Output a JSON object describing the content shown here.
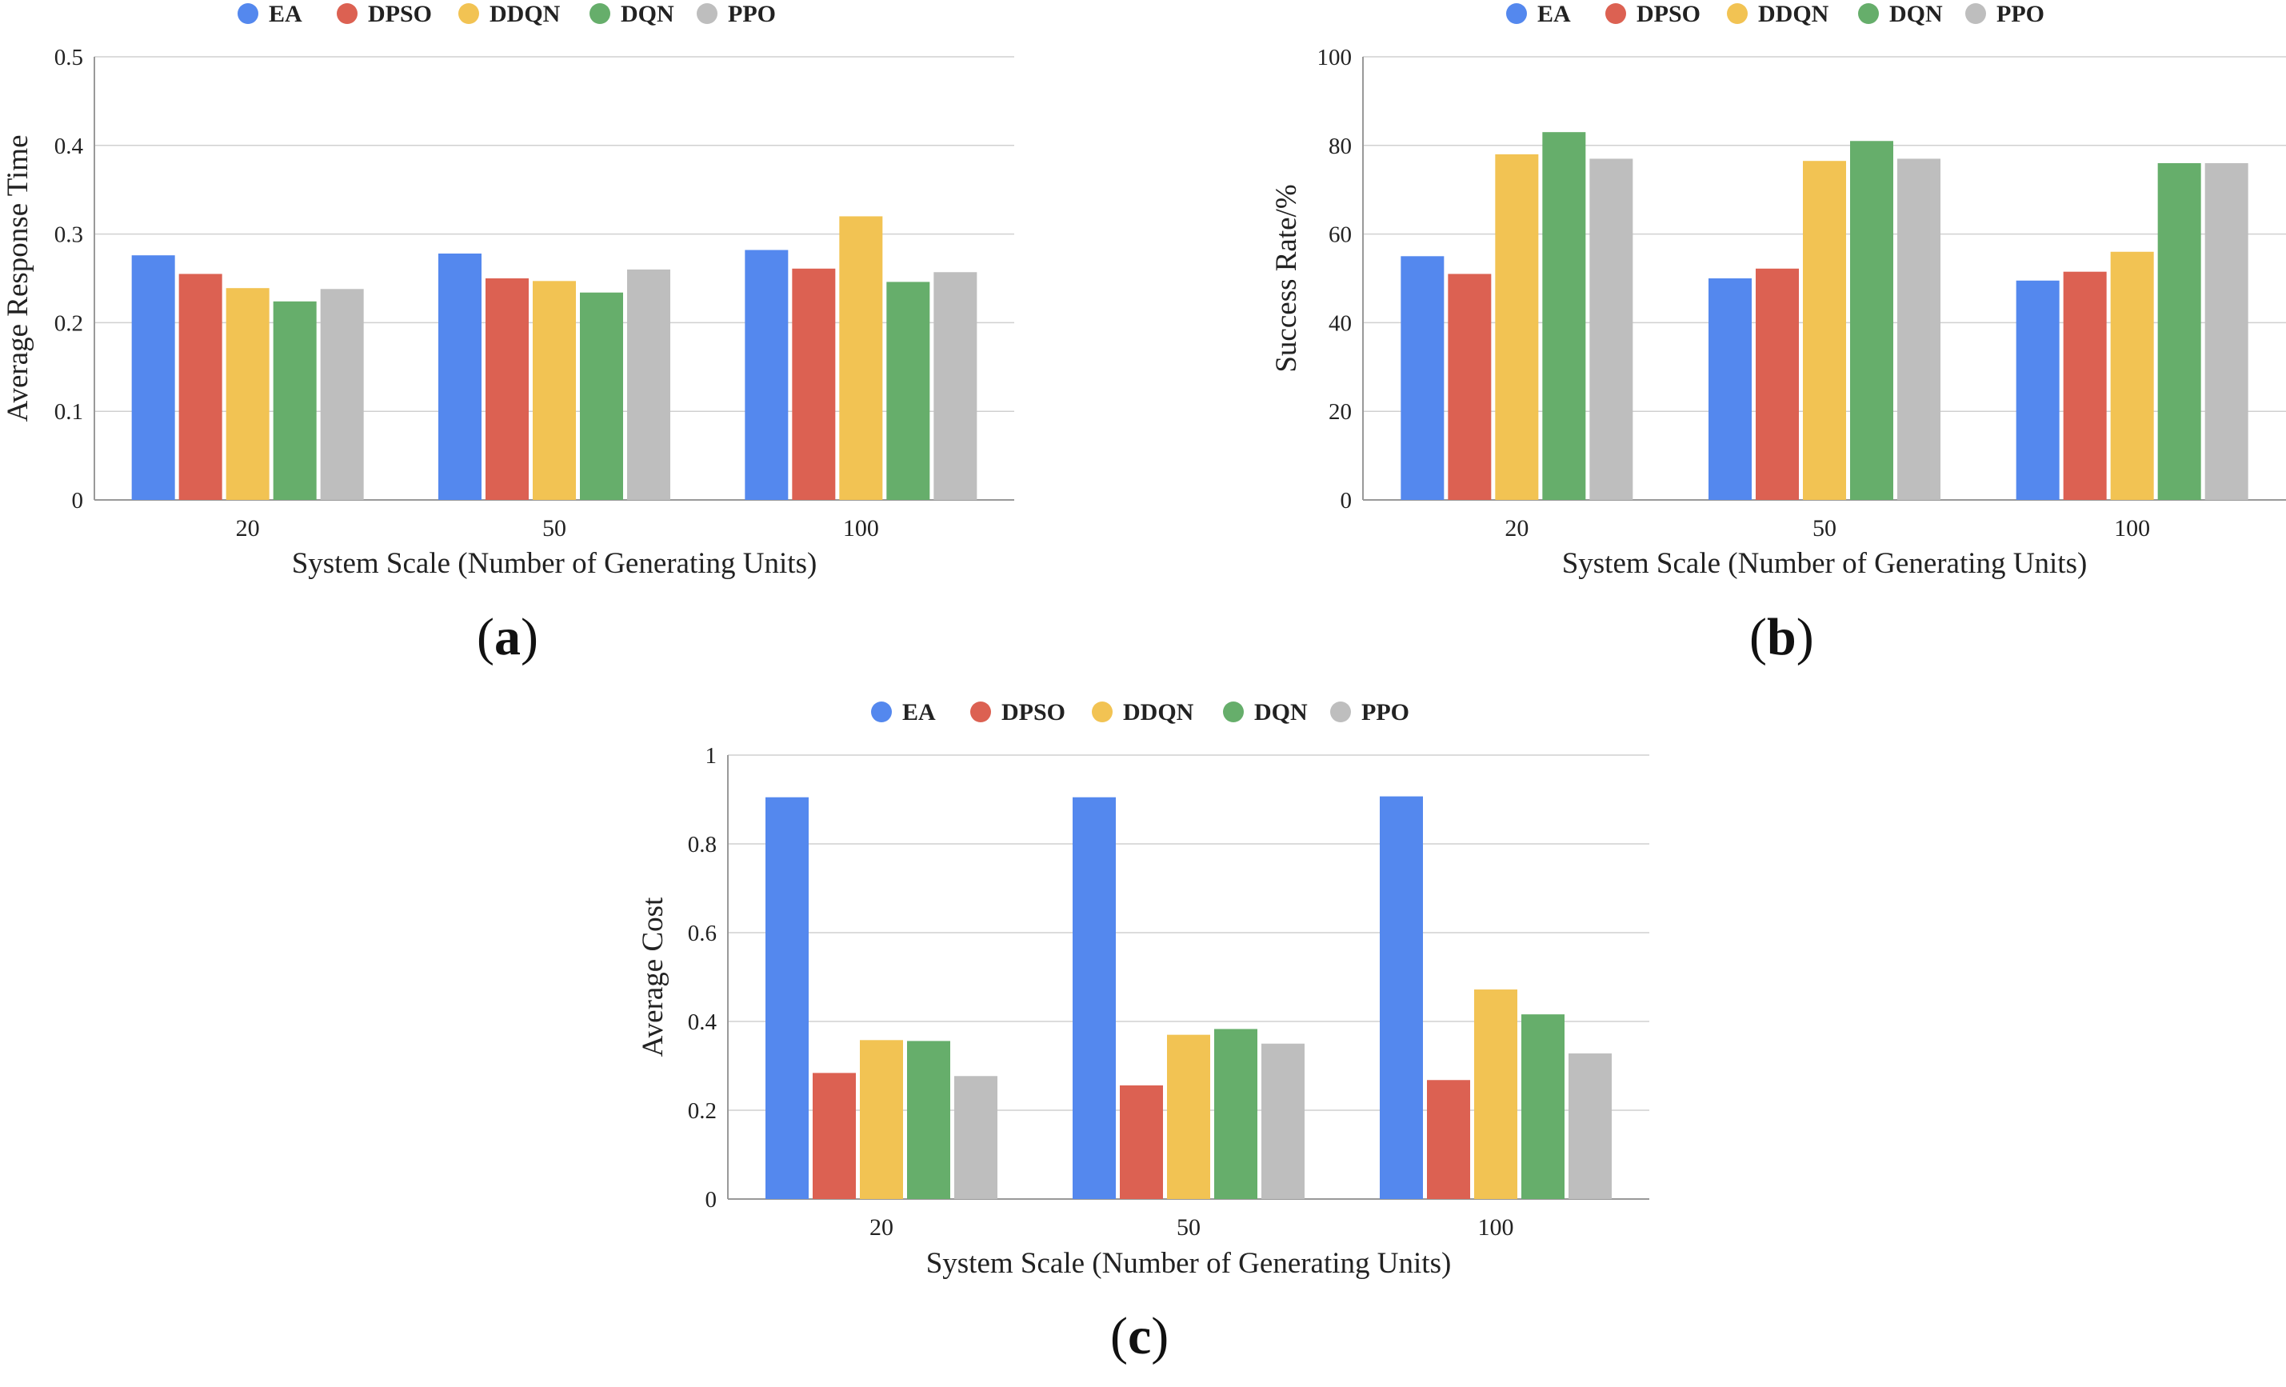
{
  "colors": {
    "EA": "#5488EE",
    "DPSO": "#DC6152",
    "DDQN": "#F2C353",
    "DQN": "#66AE6B",
    "PPO": "#BEBEBE"
  },
  "chart_data": [
    {
      "panel": "(a)",
      "type": "bar",
      "categories": [
        "20",
        "50",
        "100"
      ],
      "series": [
        {
          "name": "EA",
          "values": [
            0.276,
            0.278,
            0.282
          ]
        },
        {
          "name": "DPSO",
          "values": [
            0.255,
            0.25,
            0.261
          ]
        },
        {
          "name": "DDQN",
          "values": [
            0.239,
            0.247,
            0.32
          ]
        },
        {
          "name": "DQN",
          "values": [
            0.224,
            0.234,
            0.246
          ]
        },
        {
          "name": "PPO",
          "values": [
            0.238,
            0.26,
            0.257
          ]
        }
      ],
      "xlabel": "System Scale (Number of Generating Units)",
      "ylabel": "Average Response Time",
      "ylim": [
        0,
        0.5
      ],
      "yticks": [
        "0",
        "0.1",
        "0.2",
        "0.3",
        "0.4",
        "0.5"
      ],
      "legend": [
        "EA",
        "DPSO",
        "DDQN",
        "DQN",
        "PPO"
      ],
      "grid": true
    },
    {
      "panel": "(b)",
      "type": "bar",
      "categories": [
        "20",
        "50",
        "100"
      ],
      "series": [
        {
          "name": "EA",
          "values": [
            55,
            50,
            49.5
          ]
        },
        {
          "name": "DPSO",
          "values": [
            51,
            52.2,
            51.5
          ]
        },
        {
          "name": "DDQN",
          "values": [
            78,
            76.5,
            56
          ]
        },
        {
          "name": "DQN",
          "values": [
            83,
            81,
            76
          ]
        },
        {
          "name": "PPO",
          "values": [
            77,
            77,
            76
          ]
        }
      ],
      "xlabel": "System Scale (Number of Generating Units)",
      "ylabel": "Success Rate/%",
      "ylim": [
        0,
        100
      ],
      "yticks": [
        "0",
        "20",
        "40",
        "60",
        "80",
        "100"
      ],
      "legend": [
        "EA",
        "DPSO",
        "DDQN",
        "DQN",
        "PPO"
      ],
      "grid": true
    },
    {
      "panel": "(c)",
      "type": "bar",
      "categories": [
        "20",
        "50",
        "100"
      ],
      "series": [
        {
          "name": "EA",
          "values": [
            0.905,
            0.905,
            0.907
          ]
        },
        {
          "name": "DPSO",
          "values": [
            0.284,
            0.256,
            0.268
          ]
        },
        {
          "name": "DDQN",
          "values": [
            0.358,
            0.37,
            0.472
          ]
        },
        {
          "name": "DQN",
          "values": [
            0.356,
            0.383,
            0.416
          ]
        },
        {
          "name": "PPO",
          "values": [
            0.277,
            0.35,
            0.328
          ]
        }
      ],
      "xlabel": "System Scale (Number of Generating Units)",
      "ylabel": "Average Cost",
      "ylim": [
        0,
        1
      ],
      "yticks": [
        "0",
        "0.2",
        "0.4",
        "0.6",
        "0.8",
        "1"
      ],
      "legend": [
        "EA",
        "DPSO",
        "DDQN",
        "DQN",
        "PPO"
      ],
      "grid": true
    }
  ]
}
